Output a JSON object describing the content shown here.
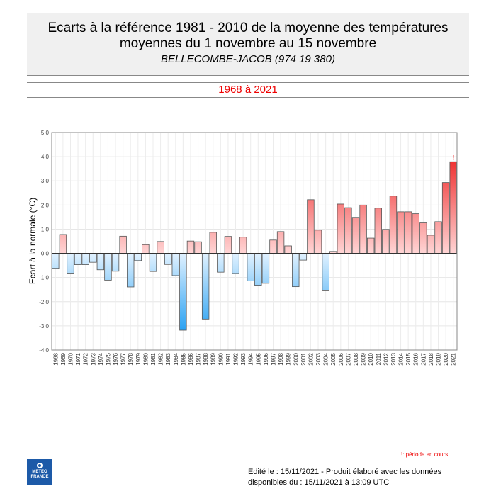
{
  "header": {
    "title_line1": "Ecarts à la référence 1981 - 2010 de la moyenne des températures",
    "title_line2": "moyennes du 1 novembre au 15 novembre",
    "station": "BELLECOMBE-JACOB (974 19 380)",
    "period": "1968 à 2021"
  },
  "chart_data": {
    "type": "bar",
    "ylabel": "Ecart à la normale (°C)",
    "xlabel": "",
    "ylim": [
      -4.0,
      5.0
    ],
    "yticks": [
      "5.0",
      "4.0",
      "3.0",
      "2.0",
      "1.0",
      "0.0",
      "-1.0",
      "-2.0",
      "-3.0",
      "-4.0"
    ],
    "grid": true,
    "colors": {
      "positive": "#ee2b2b",
      "positive_light": "#ffd4d4",
      "negative": "#2ba2f2",
      "negative_light": "#e2f2ff"
    },
    "categories": [
      "1968",
      "1969",
      "1970",
      "1971",
      "1972",
      "1973",
      "1974",
      "1975",
      "1976",
      "1977",
      "1978",
      "1979",
      "1980",
      "1981",
      "1982",
      "1983",
      "1984",
      "1985",
      "1986",
      "1987",
      "1988",
      "1989",
      "1990",
      "1991",
      "1992",
      "1993",
      "1994",
      "1995",
      "1996",
      "1997",
      "1998",
      "1999",
      "2000",
      "2001",
      "2002",
      "2003",
      "2004",
      "2005",
      "2006",
      "2007",
      "2008",
      "2009",
      "2010",
      "2011",
      "2012",
      "2013",
      "2014",
      "2015",
      "2016",
      "2017",
      "2018",
      "2019",
      "2020",
      "2021"
    ],
    "values": [
      -0.62,
      0.78,
      -0.82,
      -0.47,
      -0.47,
      -0.37,
      -0.68,
      -1.11,
      -0.74,
      0.71,
      -1.39,
      -0.3,
      0.36,
      -0.75,
      0.49,
      -0.46,
      -0.92,
      -3.18,
      0.51,
      0.48,
      -2.72,
      0.87,
      -0.78,
      0.7,
      -0.83,
      0.67,
      -1.14,
      -1.32,
      -1.24,
      0.55,
      0.9,
      0.31,
      -1.38,
      -0.28,
      2.22,
      0.96,
      -1.52,
      0.08,
      2.04,
      1.89,
      1.49,
      2.0,
      0.63,
      1.87,
      0.99,
      2.37,
      1.72,
      1.72,
      1.64,
      1.26,
      0.75,
      1.31,
      2.93,
      3.79
    ],
    "annotations": [
      {
        "category": "2021",
        "text": "!"
      }
    ]
  },
  "footer": {
    "note": "!: période en cours",
    "logo_text": "METEO FRANCE",
    "edit_line1": "Edité le : 15/11/2021 - Produit élaboré avec les données",
    "edit_line2": "disponibles du : 15/11/2021 à 13:09 UTC"
  }
}
